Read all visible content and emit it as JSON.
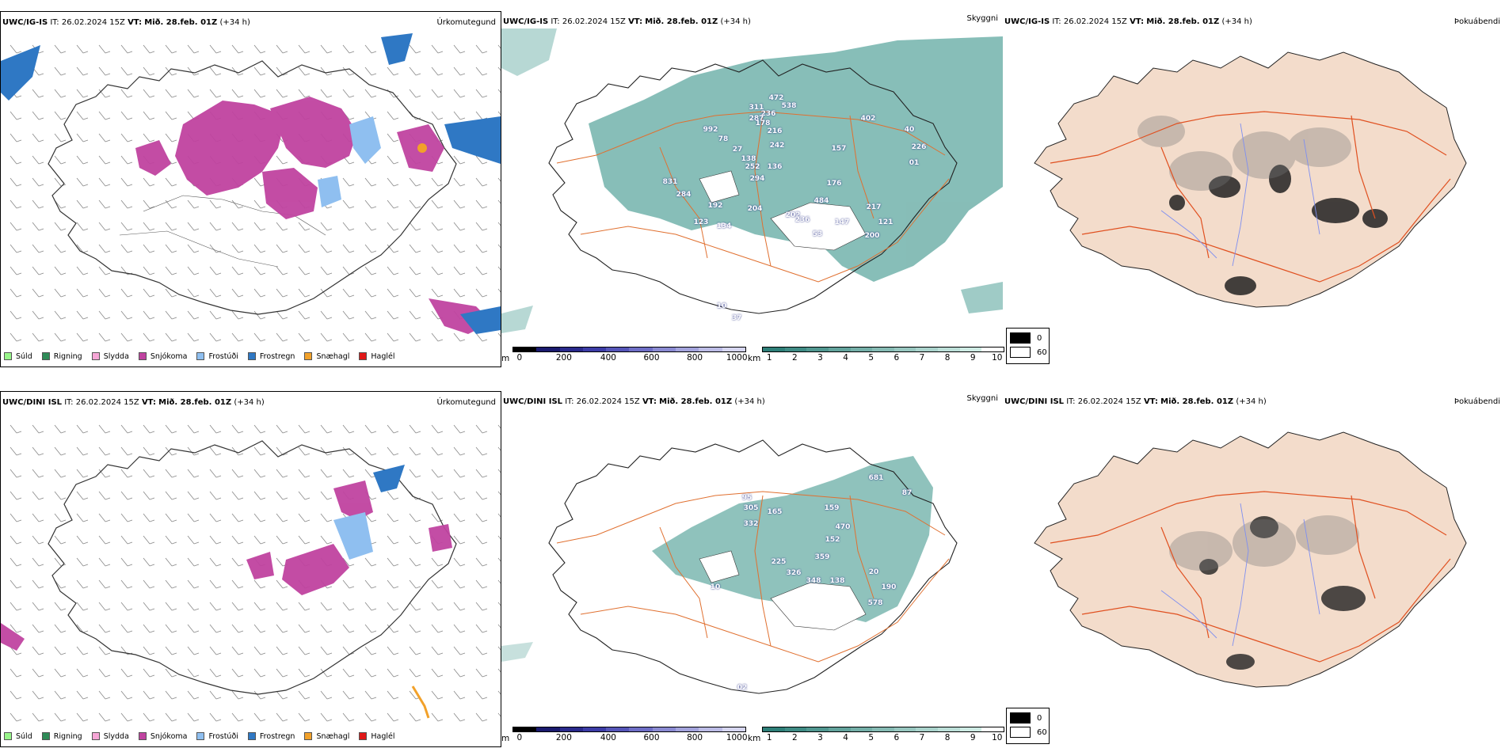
{
  "rows": [
    {
      "panels": [
        {
          "model": "UWC/IG-IS",
          "it_label": "IT:",
          "it_value": "26.02.2024 15Z",
          "vt_label": "VT:",
          "vt_value": "Mið. 28.feb. 01Z",
          "lead": "(+34 h)",
          "field": "Úrkomutegund"
        },
        {
          "model": "UWC/IG-IS",
          "it_label": "IT:",
          "it_value": "26.02.2024 15Z",
          "vt_label": "VT:",
          "vt_value": "Mið. 28.feb. 01Z",
          "lead": "(+34 h)",
          "field": "Skyggni"
        },
        {
          "model": "UWC/IG-IS",
          "it_label": "IT:",
          "it_value": "26.02.2024 15Z",
          "vt_label": "VT:",
          "vt_value": "Mið. 28.feb. 01Z",
          "lead": "(+34 h)",
          "field": "Þokuábendi"
        }
      ],
      "visibility_labels": [
        "472",
        "538",
        "311",
        "236",
        "287",
        "178",
        "216",
        "402",
        "992",
        "78",
        "27",
        "242",
        "40",
        "226",
        "157",
        "138",
        "252",
        "136",
        "294",
        "01",
        "176",
        "831",
        "284",
        "484",
        "192",
        "204",
        "202",
        "236",
        "217",
        "121",
        "123",
        "134",
        "147",
        "53",
        "200",
        "10",
        "37"
      ]
    },
    {
      "panels": [
        {
          "model": "UWC/DINI ISL",
          "it_label": "IT:",
          "it_value": "26.02.2024 15Z",
          "vt_label": "VT:",
          "vt_value": "Mið. 28.feb. 01Z",
          "lead": "(+34 h)",
          "field": "Úrkomutegund"
        },
        {
          "model": "UWC/DINI ISL",
          "it_label": "IT:",
          "it_value": "26.02.2024 15Z",
          "vt_label": "VT:",
          "vt_value": "Mið. 28.feb. 01Z",
          "lead": "(+34 h)",
          "field": "Skyggni"
        },
        {
          "model": "UWC/DINI ISL",
          "it_label": "IT:",
          "it_value": "26.02.2024 15Z",
          "vt_label": "VT:",
          "vt_value": "Mið. 28.feb. 01Z",
          "lead": "(+34 h)",
          "field": "Þokuábendi"
        }
      ],
      "visibility_labels": [
        "681",
        "87",
        "95",
        "305",
        "165",
        "159",
        "332",
        "470",
        "152",
        "359",
        "225",
        "326",
        "348",
        "138",
        "20",
        "190",
        "578",
        "10",
        "02"
      ]
    }
  ],
  "precip_legend": [
    {
      "label": "Súld",
      "color": "#98f58a"
    },
    {
      "label": "Rigning",
      "color": "#2e8b57"
    },
    {
      "label": "Slydda",
      "color": "#f6a6d6"
    },
    {
      "label": "Snjókoma",
      "color": "#c043a0"
    },
    {
      "label": "Frostúði",
      "color": "#8fbff0"
    },
    {
      "label": "Frostregn",
      "color": "#2f78c4"
    },
    {
      "label": "Snæhagl",
      "color": "#f2a12a"
    },
    {
      "label": "Haglél",
      "color": "#e01818"
    }
  ],
  "ceiling_scale": {
    "unit": "m",
    "ticks": [
      "0",
      "200",
      "400",
      "600",
      "800",
      "1000"
    ],
    "colors": [
      "#000000",
      "#1a1a6e",
      "#2a2a8c",
      "#3c3ca6",
      "#5555b8",
      "#6e6ec6",
      "#8a8ad2",
      "#a3a3dc",
      "#bcbce6",
      "#d6d6f0"
    ]
  },
  "visibility_scale": {
    "unit": "km",
    "ticks": [
      "1",
      "2",
      "3",
      "4",
      "5",
      "6",
      "7",
      "8",
      "9",
      "10"
    ],
    "colors": [
      "#2d7f78",
      "#3e8b84",
      "#509790",
      "#62a39c",
      "#74afa8",
      "#86bbb4",
      "#98c7c0",
      "#aad3cc",
      "#bcdfd8",
      "#ceebe4",
      "#ffffff"
    ]
  },
  "fog_legend": [
    {
      "value": "0",
      "color": "#000000"
    },
    {
      "value": "60",
      "color": "#ffffff"
    }
  ],
  "colors": {
    "land_fog": "#f3dccb",
    "roads": "#e07030",
    "rivers": "#7f8ff0",
    "visibility_fill": "#5fa8a0",
    "snow": "#c043a0",
    "freezing_drizzle": "#8fbff0",
    "freezing_rain": "#2f78c4"
  }
}
